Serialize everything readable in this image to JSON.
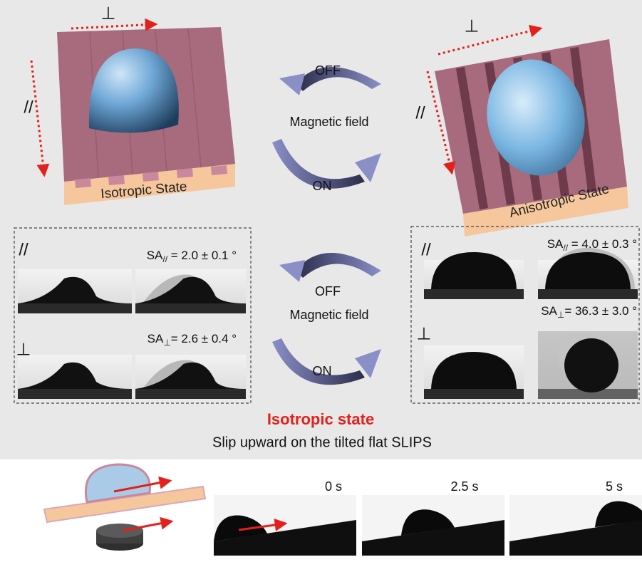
{
  "top": {
    "left": {
      "perpendicular": "⊥",
      "parallel": "//",
      "label": "Isotropic State"
    },
    "switch": {
      "off": "OFF",
      "field": "Magnetic field",
      "on": "ON"
    },
    "right": {
      "perpendicular": "⊥",
      "parallel": "//",
      "label": "Anisotropic State"
    }
  },
  "middle": {
    "left": {
      "parallel": "//",
      "sa_parallel": {
        "prefix": "SA",
        "subscript": "//",
        "value": " = 2.0 ± 0.1 °"
      },
      "perpendicular": "⊥",
      "sa_perpendicular": {
        "prefix": "SA",
        "subscript": "⊥",
        "value": "= 2.6 ± 0.4 °"
      }
    },
    "switch": {
      "off": "OFF",
      "field": "Magnetic field",
      "on": "ON"
    },
    "right": {
      "parallel": "//",
      "sa_parallel": {
        "prefix": "SA",
        "subscript": "//",
        "value": " = 4.0 ± 0.3 °"
      },
      "perpendicular": "⊥",
      "sa_perpendicular": {
        "prefix": "SA",
        "subscript": "⊥",
        "value": "= 36.3 ± 3.0 °"
      }
    }
  },
  "bottom": {
    "title": "Isotropic state",
    "subtitle": "Slip upward on the tilted flat SLIPS",
    "times": [
      "0 s",
      "2.5 s",
      "5 s"
    ]
  }
}
